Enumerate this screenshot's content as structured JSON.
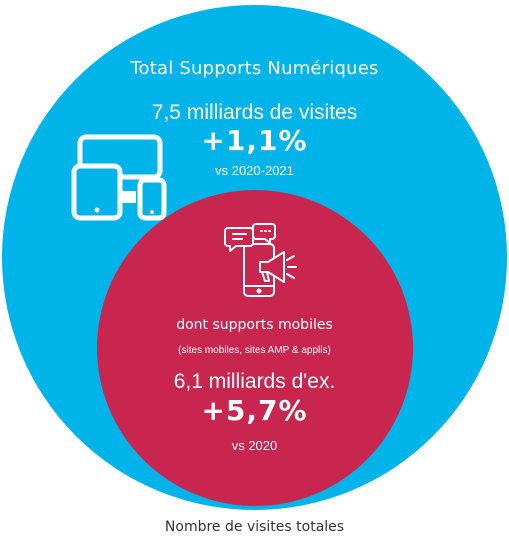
{
  "colors": {
    "outer_circle": "#00b4e9",
    "inner_circle": "#c8264e",
    "text_light": "#ffffff",
    "caption_text": "#333333"
  },
  "outer": {
    "title": "Total Supports Numériques",
    "value": "7,5 milliards de visites",
    "growth": "+1,1%",
    "period": "vs 2020-2021",
    "icon": "devices-icon"
  },
  "inner": {
    "title": "dont supports mobiles",
    "subtitle": "(sites mobiles, sites AMP & applis)",
    "value": "6,1 milliards d'ex.",
    "growth": "+5,7%",
    "period": "vs 2020",
    "icon": "mobile-marketing-icon"
  },
  "caption": "Nombre de visites totales"
}
